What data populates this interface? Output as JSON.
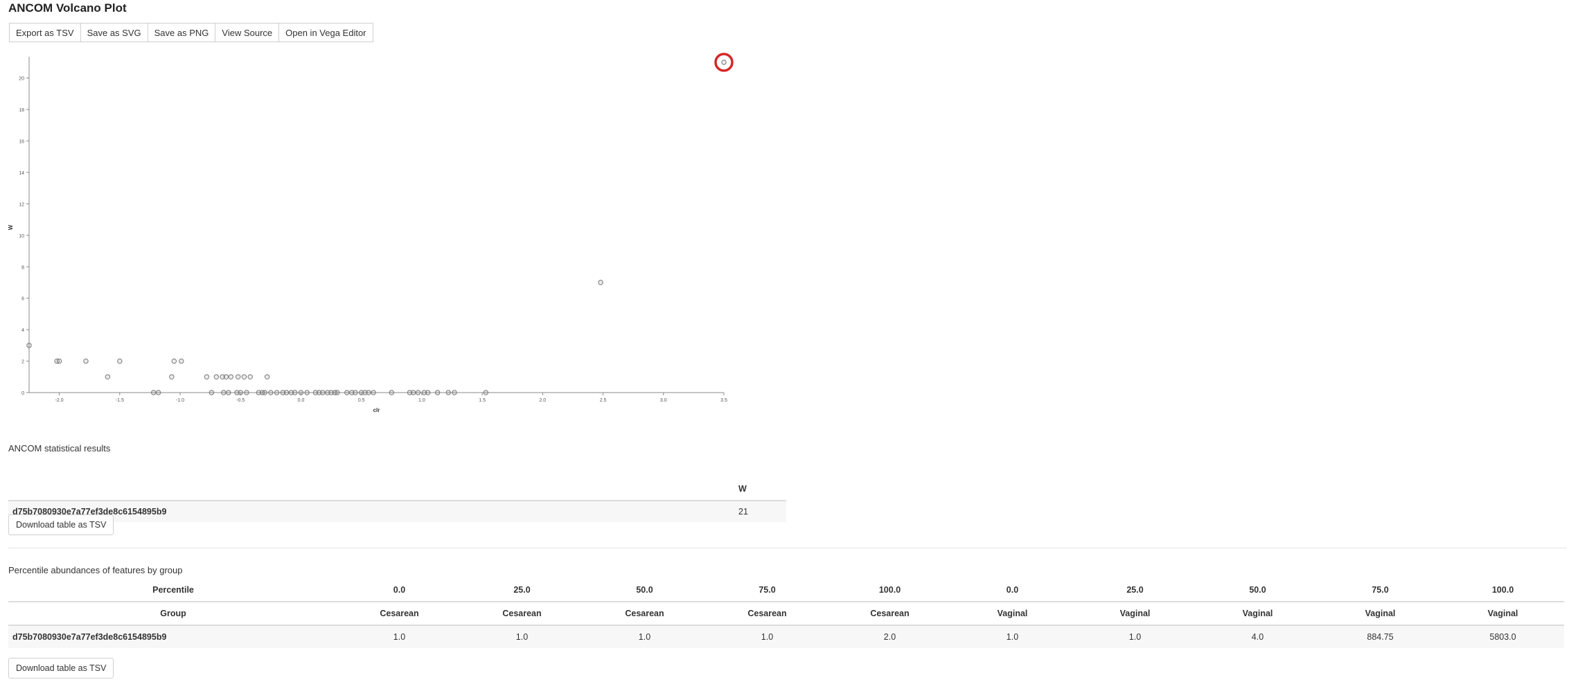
{
  "page": {
    "title": "ANCOM Volcano Plot"
  },
  "toolbar": {
    "buttons": [
      "Export as TSV",
      "Save as SVG",
      "Save as PNG",
      "View Source",
      "Open in Vega Editor"
    ]
  },
  "chart_data": {
    "type": "scatter",
    "xlabel": "clr",
    "ylabel": "W",
    "xlim": [
      -2.25,
      3.5
    ],
    "ylim": [
      0,
      21
    ],
    "x_ticks": [
      "-2.0",
      "-1.5",
      "-1.0",
      "-0.5",
      "0.0",
      "0.5",
      "1.0",
      "1.5",
      "2.0",
      "2.5",
      "3.0",
      "3.5"
    ],
    "y_ticks": [
      "0",
      "2",
      "4",
      "6",
      "8",
      "10",
      "12",
      "14",
      "16",
      "18",
      "20"
    ],
    "grid": false,
    "highlight_color": "#d62728",
    "points": [
      {
        "x": 3.5,
        "y": 21,
        "highlighted": true
      },
      {
        "x": 2.48,
        "y": 7
      },
      {
        "x": -2.25,
        "y": 3
      },
      {
        "x": -2.02,
        "y": 2
      },
      {
        "x": -2.0,
        "y": 2
      },
      {
        "x": -1.78,
        "y": 2
      },
      {
        "x": -1.5,
        "y": 2
      },
      {
        "x": -1.05,
        "y": 2
      },
      {
        "x": -0.99,
        "y": 2
      },
      {
        "x": -1.6,
        "y": 1
      },
      {
        "x": -1.07,
        "y": 1
      },
      {
        "x": -0.78,
        "y": 1
      },
      {
        "x": -0.7,
        "y": 1
      },
      {
        "x": -0.65,
        "y": 1
      },
      {
        "x": -0.62,
        "y": 1
      },
      {
        "x": -0.58,
        "y": 1
      },
      {
        "x": -0.52,
        "y": 1
      },
      {
        "x": -0.47,
        "y": 1
      },
      {
        "x": -0.42,
        "y": 1
      },
      {
        "x": -0.28,
        "y": 1
      },
      {
        "x": -1.22,
        "y": 0
      },
      {
        "x": -1.18,
        "y": 0
      },
      {
        "x": -0.74,
        "y": 0
      },
      {
        "x": -0.64,
        "y": 0
      },
      {
        "x": -0.6,
        "y": 0
      },
      {
        "x": -0.53,
        "y": 0
      },
      {
        "x": -0.5,
        "y": 0
      },
      {
        "x": -0.45,
        "y": 0
      },
      {
        "x": -0.35,
        "y": 0
      },
      {
        "x": -0.32,
        "y": 0
      },
      {
        "x": -0.3,
        "y": 0
      },
      {
        "x": -0.25,
        "y": 0
      },
      {
        "x": -0.2,
        "y": 0
      },
      {
        "x": -0.15,
        "y": 0
      },
      {
        "x": -0.12,
        "y": 0
      },
      {
        "x": -0.08,
        "y": 0
      },
      {
        "x": -0.05,
        "y": 0
      },
      {
        "x": 0.0,
        "y": 0
      },
      {
        "x": 0.05,
        "y": 0
      },
      {
        "x": 0.12,
        "y": 0
      },
      {
        "x": 0.15,
        "y": 0
      },
      {
        "x": 0.18,
        "y": 0
      },
      {
        "x": 0.22,
        "y": 0
      },
      {
        "x": 0.25,
        "y": 0
      },
      {
        "x": 0.28,
        "y": 0
      },
      {
        "x": 0.3,
        "y": 0
      },
      {
        "x": 0.38,
        "y": 0
      },
      {
        "x": 0.42,
        "y": 0
      },
      {
        "x": 0.45,
        "y": 0
      },
      {
        "x": 0.5,
        "y": 0
      },
      {
        "x": 0.53,
        "y": 0
      },
      {
        "x": 0.56,
        "y": 0
      },
      {
        "x": 0.6,
        "y": 0
      },
      {
        "x": 0.75,
        "y": 0
      },
      {
        "x": 0.9,
        "y": 0
      },
      {
        "x": 0.93,
        "y": 0
      },
      {
        "x": 0.97,
        "y": 0
      },
      {
        "x": 1.02,
        "y": 0
      },
      {
        "x": 1.05,
        "y": 0
      },
      {
        "x": 1.13,
        "y": 0
      },
      {
        "x": 1.22,
        "y": 0
      },
      {
        "x": 1.27,
        "y": 0
      },
      {
        "x": 1.53,
        "y": 0
      }
    ]
  },
  "stats": {
    "title": "ANCOM statistical results",
    "header_w": "W",
    "rows": [
      {
        "id": "d75b7080930e7a77ef3de8c6154895b9",
        "w": "21"
      }
    ],
    "download_label": "Download table as TSV"
  },
  "percentiles": {
    "title": "Percentile abundances of features by group",
    "row1_label": "Percentile",
    "row1": [
      "0.0",
      "25.0",
      "50.0",
      "75.0",
      "100.0",
      "0.0",
      "25.0",
      "50.0",
      "75.0",
      "100.0"
    ],
    "row2_label": "Group",
    "row2": [
      "Cesarean",
      "Cesarean",
      "Cesarean",
      "Cesarean",
      "Cesarean",
      "Vaginal",
      "Vaginal",
      "Vaginal",
      "Vaginal",
      "Vaginal"
    ],
    "rows": [
      {
        "id": "d75b7080930e7a77ef3de8c6154895b9",
        "values": [
          "1.0",
          "1.0",
          "1.0",
          "1.0",
          "2.0",
          "1.0",
          "1.0",
          "4.0",
          "884.75",
          "5803.0"
        ]
      }
    ],
    "download_label": "Download table as TSV"
  }
}
